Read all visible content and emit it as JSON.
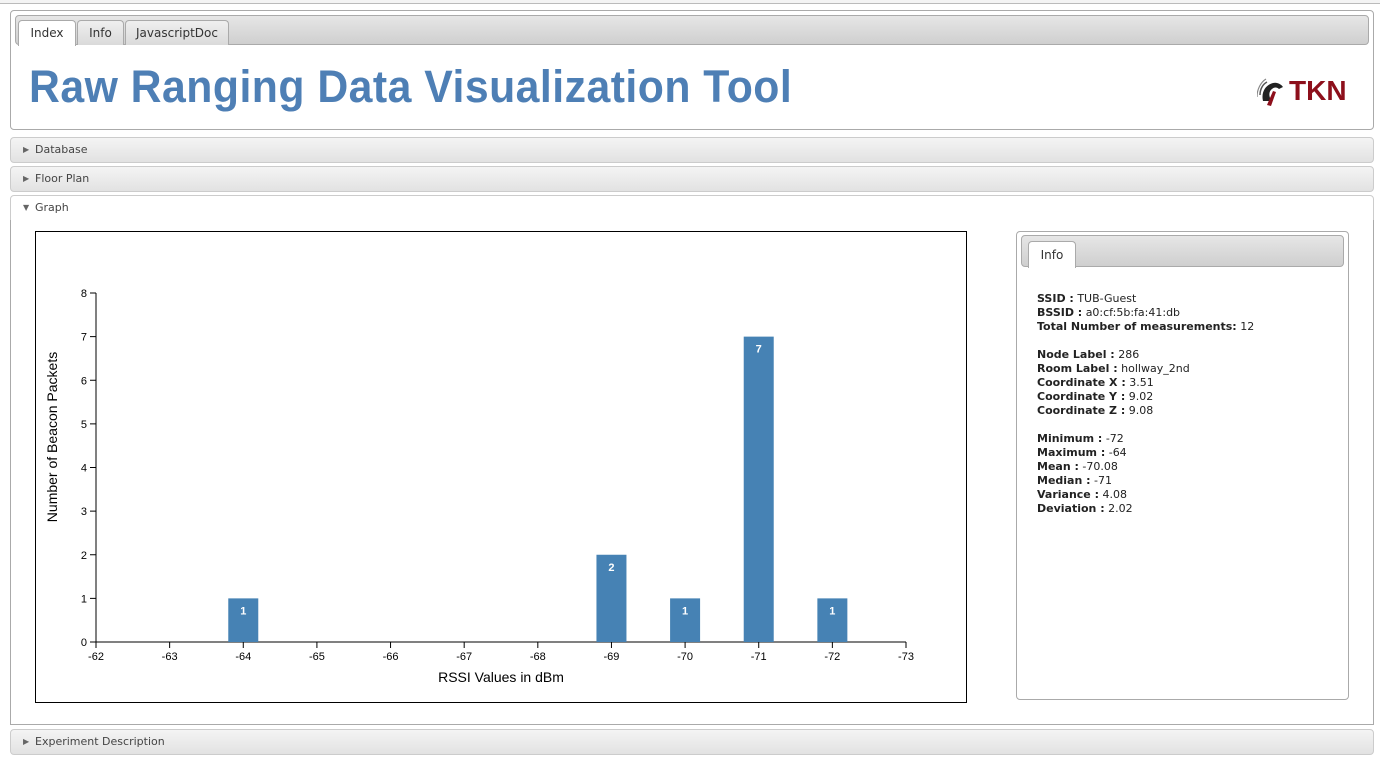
{
  "tabs": [
    {
      "label": "Index"
    },
    {
      "label": "Info"
    },
    {
      "label": "JavascriptDoc"
    }
  ],
  "title": "Raw Ranging Data Visualization Tool",
  "logo_text": "TKN",
  "sections": {
    "database": "Database",
    "floor_plan": "Floor Plan",
    "graph": "Graph",
    "experiment_description": "Experiment Description"
  },
  "info_panel": {
    "tab": "Info",
    "ssid_label": "SSID :",
    "ssid": "TUB-Guest",
    "bssid_label": "BSSID :",
    "bssid": "a0:cf:5b:fa:41:db",
    "total_label": "Total Number of measurements:",
    "total": "12",
    "node_label_label": "Node Label :",
    "node_label": "286",
    "room_label_label": "Room Label :",
    "room_label": "hollway_2nd",
    "coord_x_label": "Coordinate X :",
    "coord_x": "3.51",
    "coord_y_label": "Coordinate Y :",
    "coord_y": "9.02",
    "coord_z_label": "Coordinate Z :",
    "coord_z": "9.08",
    "minimum_label": "Minimum :",
    "minimum": "-72",
    "maximum_label": "Maximum :",
    "maximum": "-64",
    "mean_label": "Mean :",
    "mean": "-70.08",
    "median_label": "Median :",
    "median": "-71",
    "variance_label": "Variance :",
    "variance": "4.08",
    "deviation_label": "Deviation :",
    "deviation": "2.02"
  },
  "colors": {
    "bar": "#4682b4",
    "title": "#4e7fb5",
    "logo": "#8d0f1b"
  },
  "chart_data": {
    "type": "bar",
    "xlabel": "RSSI Values in dBm",
    "ylabel": "Number of Beacon Packets",
    "x_ticks": [
      -62,
      -63,
      -64,
      -65,
      -66,
      -67,
      -68,
      -69,
      -70,
      -71,
      -72,
      -73
    ],
    "xlim": [
      -62,
      -73
    ],
    "y_ticks": [
      0,
      1,
      2,
      3,
      4,
      5,
      6,
      7,
      8
    ],
    "ylim": [
      0,
      8
    ],
    "bars": [
      {
        "x": -64,
        "value": 1
      },
      {
        "x": -69,
        "value": 2
      },
      {
        "x": -70,
        "value": 1
      },
      {
        "x": -71,
        "value": 7
      },
      {
        "x": -72,
        "value": 1
      }
    ]
  }
}
